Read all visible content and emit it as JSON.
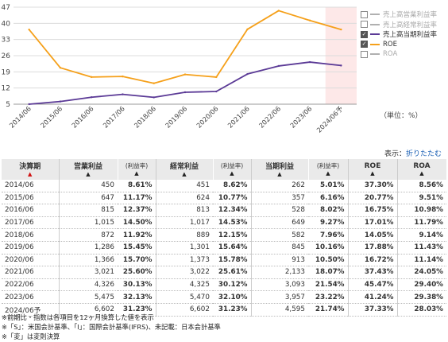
{
  "chart_data": {
    "type": "line",
    "categories": [
      "2014/06",
      "2015/06",
      "2016/06",
      "2017/06",
      "2018/06",
      "2019/06",
      "2020/06",
      "2021/06",
      "2022/06",
      "2023/06",
      "2024/06予"
    ],
    "series": [
      {
        "name": "売上高当期利益率",
        "values": [
          5.01,
          6.16,
          8.02,
          9.27,
          7.96,
          10.16,
          10.5,
          18.07,
          21.54,
          23.22,
          21.74
        ],
        "color": "#5b3a96",
        "visible": true
      },
      {
        "name": "ROE",
        "values": [
          37.3,
          20.77,
          16.75,
          17.01,
          14.05,
          17.88,
          16.72,
          37.43,
          45.47,
          41.24,
          37.33
        ],
        "color": "#f5a01a",
        "visible": true
      }
    ],
    "yticks": [
      "5",
      "12",
      "19",
      "26",
      "33",
      "40",
      "47"
    ],
    "ylim": [
      5,
      47
    ],
    "forecast_band_color": "#fde8e8"
  },
  "legend": [
    {
      "label": "売上高営業利益率",
      "checked": false,
      "color": "#b0b0b0"
    },
    {
      "label": "売上高経常利益率",
      "checked": false,
      "color": "#b0b0b0"
    },
    {
      "label": "売上高当期利益率",
      "checked": true,
      "color": "#5b3a96"
    },
    {
      "label": "ROE",
      "checked": true,
      "color": "#f5a01a"
    },
    {
      "label": "ROA",
      "checked": false,
      "color": "#b0b0b0"
    }
  ],
  "unit_text": "（単位：%）",
  "display_label": "表示：",
  "fold_label": "折りたたむ",
  "sort_mark": "▲",
  "check_mark": "✓",
  "table": {
    "headers": [
      "決算期",
      "営業利益",
      "(利益率)",
      "経常利益",
      "(利益率)",
      "当期利益",
      "(利益率)",
      "ROE",
      "ROA"
    ],
    "rows": [
      [
        "2014/06",
        "450",
        "8.61%",
        "451",
        "8.62%",
        "262",
        "5.01%",
        "37.30%",
        "8.56%"
      ],
      [
        "2015/06",
        "647",
        "11.17%",
        "624",
        "10.77%",
        "357",
        "6.16%",
        "20.77%",
        "9.51%"
      ],
      [
        "2016/06",
        "815",
        "12.37%",
        "813",
        "12.34%",
        "528",
        "8.02%",
        "16.75%",
        "10.98%"
      ],
      [
        "2017/06",
        "1,015",
        "14.50%",
        "1,017",
        "14.53%",
        "649",
        "9.27%",
        "17.01%",
        "11.79%"
      ],
      [
        "2018/06",
        "872",
        "11.92%",
        "889",
        "12.15%",
        "582",
        "7.96%",
        "14.05%",
        "9.14%"
      ],
      [
        "2019/06",
        "1,286",
        "15.45%",
        "1,301",
        "15.64%",
        "845",
        "10.16%",
        "17.88%",
        "11.43%"
      ],
      [
        "2020/06",
        "1,366",
        "15.70%",
        "1,373",
        "15.78%",
        "913",
        "10.50%",
        "16.72%",
        "11.14%"
      ],
      [
        "2021/06",
        "3,021",
        "25.60%",
        "3,022",
        "25.61%",
        "2,133",
        "18.07%",
        "37.43%",
        "24.05%"
      ],
      [
        "2022/06",
        "4,326",
        "30.13%",
        "4,325",
        "30.12%",
        "3,093",
        "21.54%",
        "45.47%",
        "29.40%"
      ],
      [
        "2023/06",
        "5,475",
        "32.13%",
        "5,470",
        "32.10%",
        "3,957",
        "23.22%",
        "41.24%",
        "29.38%"
      ],
      [
        "2024/06予",
        "6,602",
        "31.23%",
        "6,602",
        "31.23%",
        "4,595",
        "21.74%",
        "37.33%",
        "28.03%"
      ]
    ]
  },
  "notes": [
    "※前期比・指数は各項目を12ヶ月換算した値を表示",
    "※「S」：米国会計基準、「I」：国際会計基準(IFRS)、未記載：日本会計基準",
    "※「変」は変則決算"
  ]
}
